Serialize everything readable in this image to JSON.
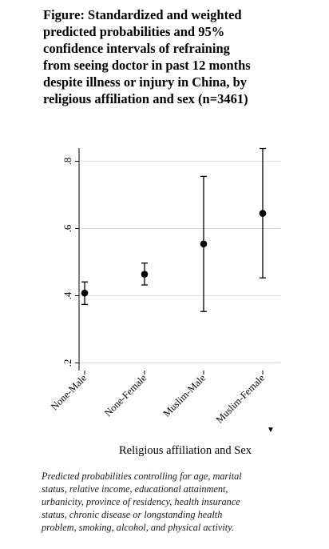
{
  "title_lines": [
    "Figure: Standardized and weighted",
    "predicted probabilities and 95%",
    "confidence intervals of refraining",
    "from seeing doctor in past 12 months",
    "despite illness or injury in China, by",
    "religious affiliation and sex (n=3461)"
  ],
  "chart_data": {
    "type": "scatter",
    "title": "",
    "xlabel": "Religious affiliation and Sex",
    "ylabel": "",
    "categories": [
      "None-Male",
      "None-Female",
      "Muslim-Male",
      "Muslim-Female"
    ],
    "values": [
      0.408,
      0.464,
      0.554,
      0.645
    ],
    "ci_lower": [
      0.374,
      0.432,
      0.353,
      0.453
    ],
    "ci_upper": [
      0.441,
      0.497,
      0.755,
      0.838
    ],
    "ylim": [
      0.2,
      0.85
    ],
    "yticks": [
      0.2,
      0.4,
      0.6,
      0.8
    ],
    "ytick_labels": [
      ".2",
      ".4",
      ".6",
      ".8"
    ],
    "grid": true,
    "error_bars": "95% confidence intervals"
  },
  "note_lines": [
    "Predicted probabilities controlling for age, marital",
    "status, relative income, educational attainment,",
    "urbanicity, province of residency, health insurance",
    "status, chronic disease or longstanding health",
    "problem, smoking, alcohol, and physical activity."
  ]
}
